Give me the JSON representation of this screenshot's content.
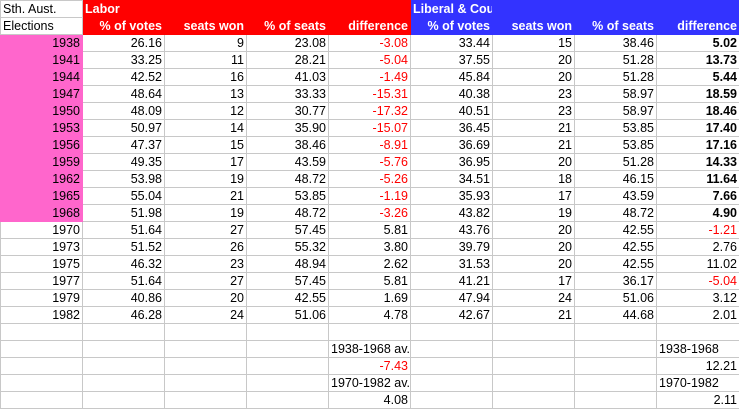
{
  "header": {
    "corner": [
      "Sth. Aust.",
      "Elections"
    ],
    "labor_title": "Labor",
    "liberal_title": "Liberal & Country Party",
    "columns": [
      "% of votes",
      "seats won",
      "% of seats",
      "difference"
    ]
  },
  "colors": {
    "labor": "#ff0000",
    "liberal": "#3333ff",
    "highlight_years": "#ff66cc",
    "negative": "#ff0000"
  },
  "rows": [
    {
      "year": "1938",
      "labor": [
        "26.16",
        "9",
        "23.08",
        "-3.08"
      ],
      "liberal": [
        "33.44",
        "15",
        "38.46",
        "5.02"
      ],
      "highlight": true
    },
    {
      "year": "1941",
      "labor": [
        "33.25",
        "11",
        "28.21",
        "-5.04"
      ],
      "liberal": [
        "37.55",
        "20",
        "51.28",
        "13.73"
      ],
      "highlight": true
    },
    {
      "year": "1944",
      "labor": [
        "42.52",
        "16",
        "41.03",
        "-1.49"
      ],
      "liberal": [
        "45.84",
        "20",
        "51.28",
        "5.44"
      ],
      "highlight": true
    },
    {
      "year": "1947",
      "labor": [
        "48.64",
        "13",
        "33.33",
        "-15.31"
      ],
      "liberal": [
        "40.38",
        "23",
        "58.97",
        "18.59"
      ],
      "highlight": true
    },
    {
      "year": "1950",
      "labor": [
        "48.09",
        "12",
        "30.77",
        "-17.32"
      ],
      "liberal": [
        "40.51",
        "23",
        "58.97",
        "18.46"
      ],
      "highlight": true
    },
    {
      "year": "1953",
      "labor": [
        "50.97",
        "14",
        "35.90",
        "-15.07"
      ],
      "liberal": [
        "36.45",
        "21",
        "53.85",
        "17.40"
      ],
      "highlight": true
    },
    {
      "year": "1956",
      "labor": [
        "47.37",
        "15",
        "38.46",
        "-8.91"
      ],
      "liberal": [
        "36.69",
        "21",
        "53.85",
        "17.16"
      ],
      "highlight": true
    },
    {
      "year": "1959",
      "labor": [
        "49.35",
        "17",
        "43.59",
        "-5.76"
      ],
      "liberal": [
        "36.95",
        "20",
        "51.28",
        "14.33"
      ],
      "highlight": true
    },
    {
      "year": "1962",
      "labor": [
        "53.98",
        "19",
        "48.72",
        "-5.26"
      ],
      "liberal": [
        "34.51",
        "18",
        "46.15",
        "11.64"
      ],
      "highlight": true
    },
    {
      "year": "1965",
      "labor": [
        "55.04",
        "21",
        "53.85",
        "-1.19"
      ],
      "liberal": [
        "35.93",
        "17",
        "43.59",
        "7.66"
      ],
      "highlight": true
    },
    {
      "year": "1968",
      "labor": [
        "51.98",
        "19",
        "48.72",
        "-3.26"
      ],
      "liberal": [
        "43.82",
        "19",
        "48.72",
        "4.90"
      ],
      "highlight": true
    },
    {
      "year": "1970",
      "labor": [
        "51.64",
        "27",
        "57.45",
        "5.81"
      ],
      "liberal": [
        "43.76",
        "20",
        "42.55",
        "-1.21"
      ],
      "highlight": false
    },
    {
      "year": "1973",
      "labor": [
        "51.52",
        "26",
        "55.32",
        "3.80"
      ],
      "liberal": [
        "39.79",
        "20",
        "42.55",
        "2.76"
      ],
      "highlight": false
    },
    {
      "year": "1975",
      "labor": [
        "46.32",
        "23",
        "48.94",
        "2.62"
      ],
      "liberal": [
        "31.53",
        "20",
        "42.55",
        "11.02"
      ],
      "highlight": false
    },
    {
      "year": "1977",
      "labor": [
        "51.64",
        "27",
        "57.45",
        "5.81"
      ],
      "liberal": [
        "41.21",
        "17",
        "36.17",
        "-5.04"
      ],
      "highlight": false
    },
    {
      "year": "1979",
      "labor": [
        "40.86",
        "20",
        "42.55",
        "1.69"
      ],
      "liberal": [
        "47.94",
        "24",
        "51.06",
        "3.12"
      ],
      "highlight": false
    },
    {
      "year": "1982",
      "labor": [
        "46.28",
        "24",
        "51.06",
        "4.78"
      ],
      "liberal": [
        "42.67",
        "21",
        "44.68",
        "2.01"
      ],
      "highlight": false
    }
  ],
  "summary": {
    "labor": [
      {
        "text": "1938-1968 av.",
        "align": "left"
      },
      {
        "text": "-7.43",
        "neg": true
      },
      {
        "text": "1970-1982 av.",
        "align": "left"
      },
      {
        "text": "4.08"
      }
    ],
    "liberal": [
      {
        "text": "1938-1968",
        "align": "left"
      },
      {
        "text": "12.21"
      },
      {
        "text": "1970-1982",
        "align": "left"
      },
      {
        "text": "2.11"
      }
    ]
  }
}
